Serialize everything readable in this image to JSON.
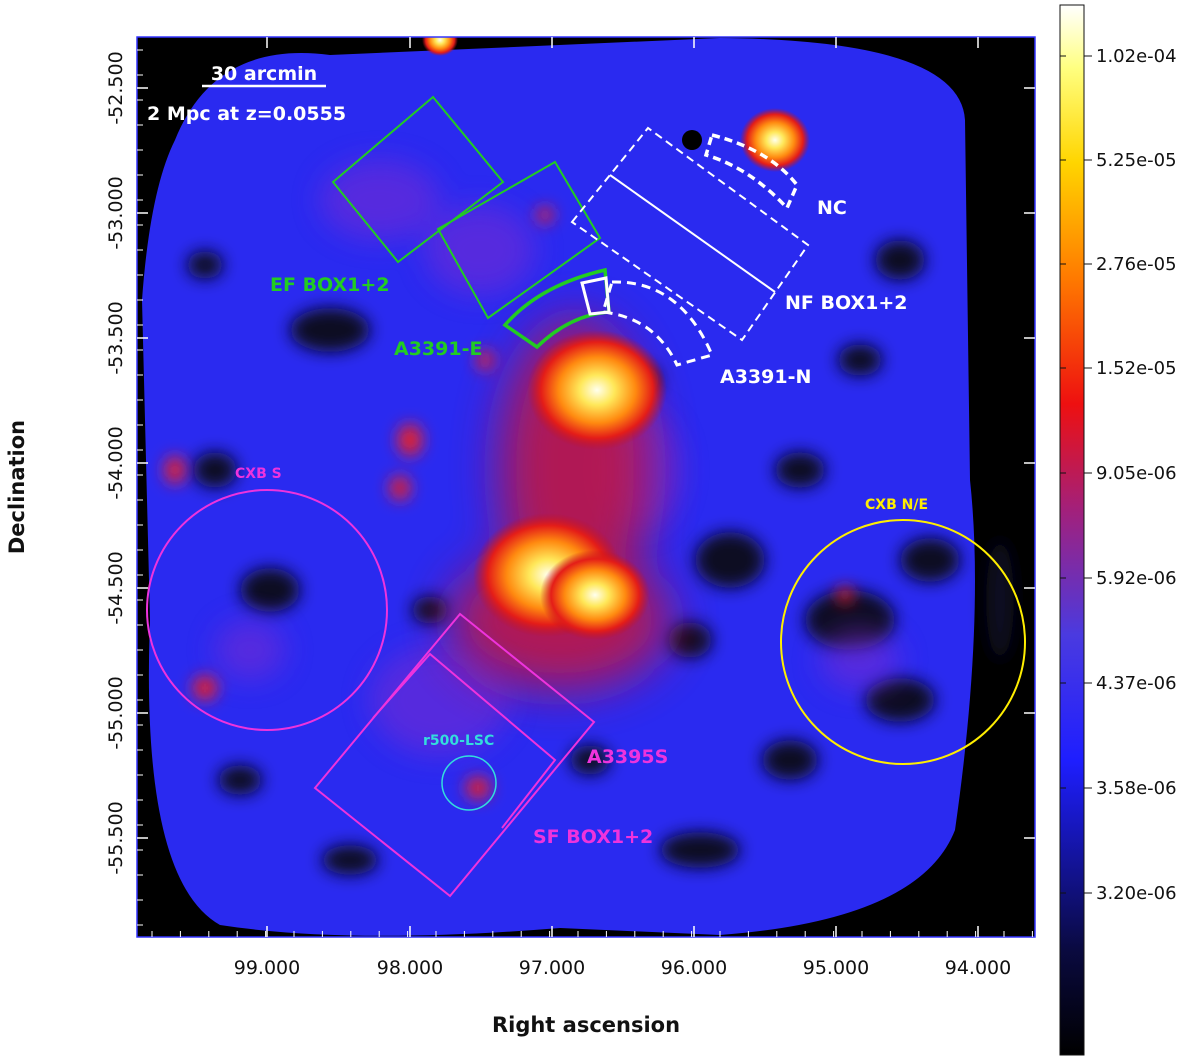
{
  "figure": {
    "xlabel": "Right ascension",
    "ylabel": "Declination",
    "ra_ticks": [
      "99.000",
      "98.000",
      "97.000",
      "96.000",
      "95.000",
      "94.000"
    ],
    "dec_ticks": [
      "-52.500",
      "-53.000",
      "-53.500",
      "-54.000",
      "-54.500",
      "-55.000",
      "-55.500"
    ],
    "scalebar": {
      "label1": "30 arcmin",
      "label2": "2 Mpc at z=0.0555"
    },
    "colorbar_ticks": [
      "1.02e-04",
      "5.25e-05",
      "2.76e-05",
      "1.52e-05",
      "9.05e-06",
      "5.92e-06",
      "4.37e-06",
      "3.58e-06",
      "3.20e-06"
    ],
    "regions": {
      "nc": "NC",
      "nf_box": "NF BOX1+2",
      "a3391_n": "A3391-N",
      "ef_box": "EF BOX1+2",
      "a3391_e": "A3391-E",
      "cxb_s": "CXB S",
      "cxb_ne": "CXB N/E",
      "r500_lsc": "r500-LSC",
      "a3395s": "A3395S",
      "sf_box": "SF BOX1+2"
    },
    "colors": {
      "green": "#22cc22",
      "white": "#ffffff",
      "magenta": "#ee33dd",
      "yellow": "#ffee00",
      "cyan": "#33dddd",
      "frame": "#3333ff"
    }
  }
}
